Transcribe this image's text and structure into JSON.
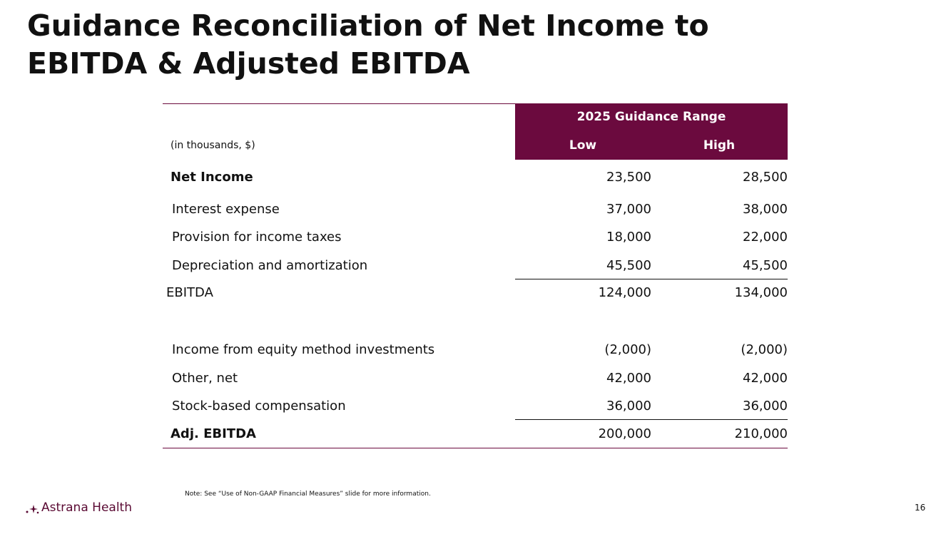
{
  "title": "Guidance Reconciliation of Net Income to EBITDA & Adjusted EBITDA",
  "table": {
    "units_label": "(in thousands, $)",
    "group_header": "2025 Guidance Range",
    "columns": [
      "Low",
      "High"
    ],
    "rows": [
      [
        "Net Income",
        "23,500",
        "28,500"
      ],
      [
        "Interest expense",
        "37,000",
        "38,000"
      ],
      [
        "Provision for income taxes",
        "18,000",
        "22,000"
      ],
      [
        "Depreciation and amortization",
        "45,500",
        "45,500"
      ],
      [
        "EBITDA",
        "124,000",
        "134,000"
      ],
      [
        "Income from equity method investments",
        "(2,000)",
        "(2,000)"
      ],
      [
        "Other, net",
        "42,000",
        "42,000"
      ],
      [
        "Stock-based compensation",
        "36,000",
        "36,000"
      ],
      [
        "Adj. EBITDA",
        "200,000",
        "210,000"
      ]
    ]
  },
  "note": "Note: See “Use of Non-GAAP Financial Measures” slide for more information.",
  "footer": {
    "brand": "Astrana Health",
    "page_number": "16"
  }
}
